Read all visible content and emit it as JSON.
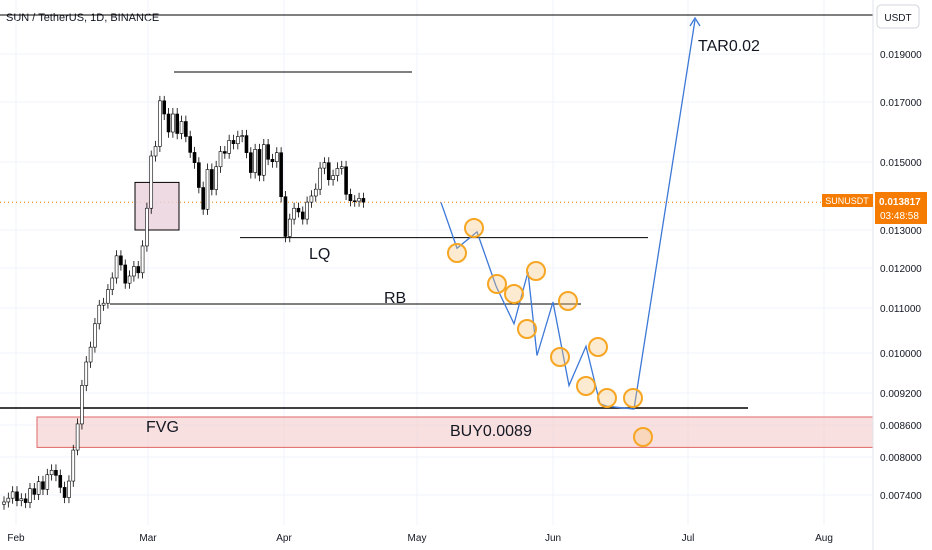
{
  "header": {
    "title": "SUN / TetherUS, 1D, BINANCE"
  },
  "price_axis": {
    "currency": "USDT",
    "ticks": [
      "0.019000",
      "0.017000",
      "0.015000",
      "0.013000",
      "0.012000",
      "0.011000",
      "0.010000",
      "0.009200",
      "0.008600",
      "0.008000",
      "0.007400"
    ]
  },
  "time_axis": {
    "ticks": [
      "Feb",
      "Mar",
      "Apr",
      "May",
      "Jun",
      "Jul",
      "Aug"
    ]
  },
  "price_label": {
    "symbol": "SUNUSDT",
    "price": "0.013817",
    "countdown": "03:48:58",
    "color": "#f57c00"
  },
  "annotations": {
    "target": "TAR0.02",
    "lq": "LQ",
    "rb": "RB",
    "fvg": "FVG",
    "buy": "BUY0.0089"
  },
  "colors": {
    "up": "#26a69a",
    "down": "#ef5350",
    "candle": "#000000",
    "projection": "#3c78d8",
    "circle": "#f6a623",
    "fvg_fill": "#f4cccc",
    "fvg_border": "#e06666",
    "ob_fill": "#ead1dc"
  },
  "chart_data": {
    "type": "candlestick",
    "title": "SUN / TetherUS, 1D, BINANCE",
    "price_axis_ticks": [
      0.019,
      0.017,
      0.015,
      0.013,
      0.012,
      0.011,
      0.01,
      0.0092,
      0.0086,
      0.008,
      0.0074
    ],
    "time_axis_ticks": [
      "Feb",
      "Mar",
      "Apr",
      "May",
      "Jun",
      "Jul",
      "Aug"
    ],
    "last_price": 0.013817,
    "candles_close": [
      0.00729,
      0.00735,
      0.00745,
      0.00731,
      0.00734,
      0.00728,
      0.0075,
      0.00741,
      0.00761,
      0.00749,
      0.00772,
      0.00779,
      0.00771,
      0.00752,
      0.00736,
      0.00762,
      0.00813,
      0.00862,
      0.00935,
      0.00982,
      0.01013,
      0.01065,
      0.01107,
      0.01112,
      0.01146,
      0.01175,
      0.01232,
      0.01208,
      0.01162,
      0.0118,
      0.01204,
      0.01188,
      0.01258,
      0.01364,
      0.0152,
      0.01552,
      0.01705,
      0.0166,
      0.016,
      0.0166,
      0.01595,
      0.01635,
      0.01585,
      0.01532,
      0.01498,
      0.01425,
      0.01361,
      0.01478,
      0.01419,
      0.01486,
      0.01535,
      0.01529,
      0.01572,
      0.01561,
      0.01585,
      0.01588,
      0.01531,
      0.01469,
      0.01542,
      0.01461,
      0.01558,
      0.01509,
      0.01501,
      0.01531,
      0.01398,
      0.01283,
      0.01332,
      0.01364,
      0.01353,
      0.01332,
      0.01382,
      0.014,
      0.0142,
      0.01482,
      0.01498,
      0.01448,
      0.0146,
      0.01481,
      0.01486,
      0.01405,
      0.01386,
      0.01385,
      0.01393,
      0.01382
    ],
    "levels": {
      "high_line": 0.01825,
      "LQ": 0.0128,
      "RB": 0.0111,
      "BUY": 0.0089,
      "target": 0.02
    },
    "fvg_zone": [
      0.00818,
      0.00875
    ],
    "projection_path": [
      0.01381,
      0.01252,
      0.01295,
      0.01155,
      0.01065,
      0.0119,
      0.00995,
      0.01115,
      0.00935,
      0.01015,
      0.009,
      0.00895,
      0.0089,
      0.02
    ]
  }
}
